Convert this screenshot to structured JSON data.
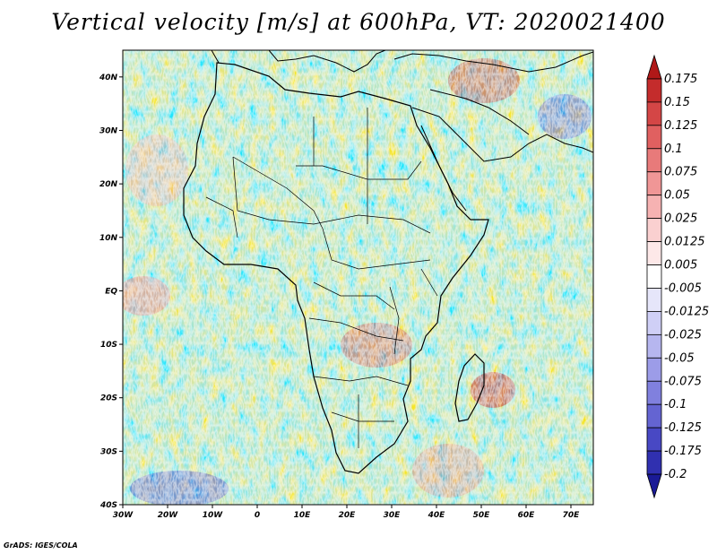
{
  "title": "Vertical velocity [m/s] at 600hPa, VT: 2020021400",
  "credit": "GrADS: IGES/COLA",
  "map": {
    "projection": "lat-lon",
    "lon_range": [
      -30,
      75
    ],
    "lat_range": [
      -40,
      45
    ],
    "lat_ticks": [
      {
        "value": 40,
        "label": "40N"
      },
      {
        "value": 30,
        "label": "30N"
      },
      {
        "value": 20,
        "label": "20N"
      },
      {
        "value": 10,
        "label": "10N"
      },
      {
        "value": 0,
        "label": "EQ"
      },
      {
        "value": -10,
        "label": "10S"
      },
      {
        "value": -20,
        "label": "20S"
      },
      {
        "value": -30,
        "label": "30S"
      },
      {
        "value": -40,
        "label": "40S"
      }
    ],
    "lon_ticks": [
      {
        "value": -30,
        "label": "30W"
      },
      {
        "value": -20,
        "label": "20W"
      },
      {
        "value": -10,
        "label": "10W"
      },
      {
        "value": 0,
        "label": "0"
      },
      {
        "value": 10,
        "label": "10E"
      },
      {
        "value": 20,
        "label": "20E"
      },
      {
        "value": 30,
        "label": "30E"
      },
      {
        "value": 40,
        "label": "40E"
      },
      {
        "value": 50,
        "label": "50E"
      },
      {
        "value": 60,
        "label": "60E"
      },
      {
        "value": 70,
        "label": "70E"
      }
    ]
  },
  "colorbar": {
    "levels": [
      "0.175",
      "0.15",
      "0.125",
      "0.1",
      "0.075",
      "0.05",
      "0.025",
      "0.0125",
      "0.005",
      "-0.005",
      "-0.0125",
      "-0.025",
      "-0.05",
      "-0.075",
      "-0.1",
      "-0.125",
      "-0.175",
      "-0.2"
    ],
    "colors": [
      "#b01818",
      "#c42c2c",
      "#d44646",
      "#e06060",
      "#e87a7a",
      "#f09696",
      "#f6b2b2",
      "#fad0d0",
      "#fde8e8",
      "#ffffff",
      "#e6e6fa",
      "#cfcff6",
      "#b6b6ef",
      "#9c9ce8",
      "#8080de",
      "#6464d2",
      "#4848c4",
      "#3030b0",
      "#1a1a96"
    ]
  }
}
